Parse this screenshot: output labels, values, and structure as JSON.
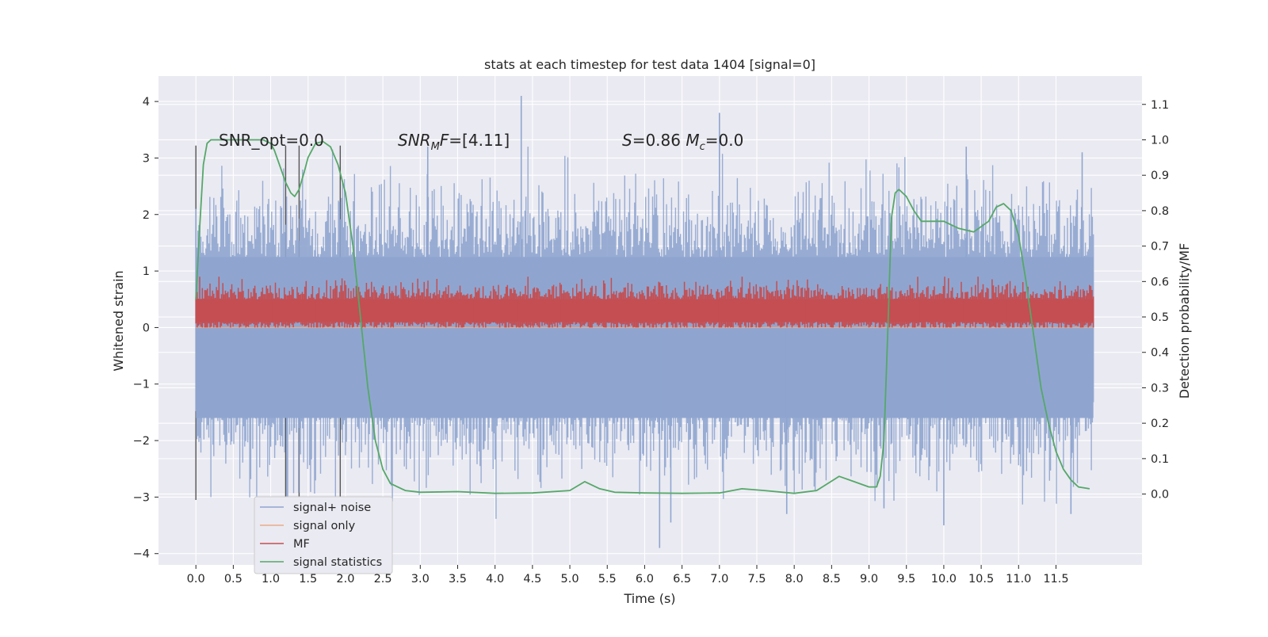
{
  "chart_data": {
    "type": "line",
    "title": "stats at each timestep for test data 1404 [signal=0]",
    "xlabel": "Time (s)",
    "ylabel": "Whitened strain",
    "ylabel_right": "Detection probability/MF",
    "xlim": [
      -0.5,
      12.65
    ],
    "ylim": [
      -4.2,
      4.45
    ],
    "ylim_right": [
      -0.2,
      1.18
    ],
    "x_ticks": [
      "0.0",
      "0.5",
      "1.0",
      "1.5",
      "2.0",
      "2.5",
      "3.0",
      "3.5",
      "4.0",
      "4.5",
      "5.0",
      "5.5",
      "6.0",
      "6.5",
      "7.0",
      "7.5",
      "8.0",
      "8.5",
      "9.0",
      "9.5",
      "10.0",
      "10.5",
      "11.0",
      "11.5"
    ],
    "y_ticks": [
      "4",
      "3",
      "2",
      "1",
      "0",
      "−1",
      "−2",
      "−3",
      "−4"
    ],
    "y_right_ticks": [
      "1.1",
      "1.0",
      "0.9",
      "0.8",
      "0.7",
      "0.6",
      "0.5",
      "0.4",
      "0.3",
      "0.2",
      "0.1",
      "0.0"
    ],
    "grid": true,
    "legend_position": "lower-left",
    "annotations": [
      {
        "text": "SNR_opt=0.0",
        "x": 0.2,
        "y": 3.2
      },
      {
        "text": "SNR_MF=[4.11]",
        "x": 2.6,
        "y": 3.2
      },
      {
        "text": "S=0.86   M_c=0.0",
        "x": 5.6,
        "y": 3.2
      }
    ],
    "vertical_lines_x": [
      0.0,
      1.2,
      1.38,
      1.93
    ],
    "series": [
      {
        "name": "signal+ noise",
        "color": "#8fa5cf",
        "axis": "left",
        "x_range": [
          0.0,
          12.0
        ],
        "envelope": {
          "upper_typical": 2.2,
          "lower_typical": -2.3
        },
        "notable_peaks": [
          [
            0.0,
            2.1
          ],
          [
            4.35,
            4.1
          ],
          [
            7.0,
            3.8
          ],
          [
            3.1,
            3.2
          ],
          [
            10.3,
            3.2
          ],
          [
            11.85,
            3.1
          ]
        ],
        "notable_troughs": [
          [
            6.2,
            -3.9
          ],
          [
            10.0,
            -3.5
          ],
          [
            6.35,
            -3.45
          ],
          [
            11.7,
            -3.3
          ],
          [
            7.9,
            -3.3
          ],
          [
            9.2,
            -3.2
          ]
        ]
      },
      {
        "name": "signal only",
        "color": "#e9a98a",
        "axis": "left",
        "x": [
          0.0,
          12.0
        ],
        "y": [
          0.0,
          0.0
        ]
      },
      {
        "name": "MF",
        "color": "#c44e52",
        "axis": "left",
        "x_range": [
          0.0,
          12.0
        ],
        "band": [
          0.0,
          0.7
        ],
        "typical_center": 0.3
      },
      {
        "name": "signal statistics",
        "color": "#55a868",
        "axis": "right",
        "x": [
          0.0,
          0.05,
          0.1,
          0.15,
          0.2,
          0.4,
          0.7,
          0.9,
          1.0,
          1.05,
          1.1,
          1.2,
          1.27,
          1.32,
          1.38,
          1.45,
          1.5,
          1.6,
          1.7,
          1.8,
          1.9,
          2.0,
          2.1,
          2.2,
          2.3,
          2.4,
          2.5,
          2.6,
          2.8,
          3.0,
          3.5,
          4.0,
          4.5,
          5.0,
          5.2,
          5.4,
          5.6,
          6.0,
          6.5,
          7.0,
          7.3,
          7.6,
          8.0,
          8.3,
          8.6,
          8.8,
          9.0,
          9.1,
          9.15,
          9.2,
          9.25,
          9.3,
          9.35,
          9.4,
          9.5,
          9.6,
          9.7,
          9.8,
          10.0,
          10.2,
          10.4,
          10.6,
          10.7,
          10.8,
          10.9,
          11.0,
          11.1,
          11.2,
          11.3,
          11.4,
          11.5,
          11.6,
          11.7,
          11.8,
          11.95
        ],
        "y": [
          0.55,
          0.75,
          0.93,
          0.99,
          1.0,
          1.0,
          1.0,
          1.0,
          0.99,
          0.97,
          0.94,
          0.88,
          0.85,
          0.84,
          0.86,
          0.91,
          0.95,
          0.99,
          0.995,
          0.98,
          0.93,
          0.85,
          0.7,
          0.5,
          0.3,
          0.15,
          0.07,
          0.03,
          0.01,
          0.005,
          0.007,
          0.002,
          0.003,
          0.01,
          0.035,
          0.015,
          0.005,
          0.003,
          0.002,
          0.003,
          0.015,
          0.01,
          0.002,
          0.01,
          0.05,
          0.035,
          0.02,
          0.02,
          0.05,
          0.15,
          0.45,
          0.78,
          0.85,
          0.86,
          0.84,
          0.8,
          0.77,
          0.77,
          0.77,
          0.75,
          0.74,
          0.77,
          0.81,
          0.82,
          0.8,
          0.73,
          0.6,
          0.45,
          0.3,
          0.2,
          0.12,
          0.07,
          0.04,
          0.02,
          0.015
        ]
      }
    ]
  }
}
